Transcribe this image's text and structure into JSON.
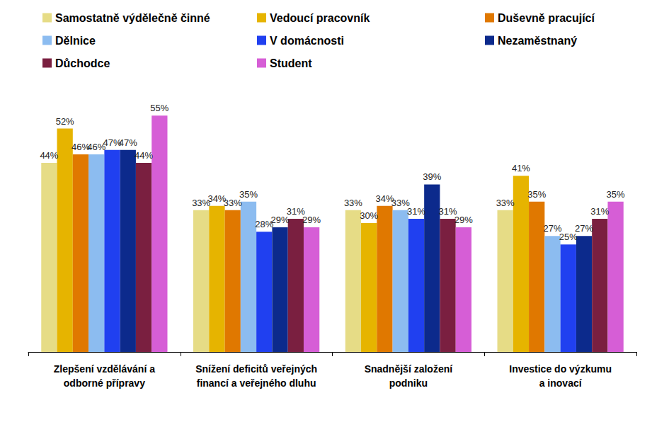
{
  "chart_data": {
    "type": "bar",
    "categories": [
      "Zlepšení vzdělávání a\nodborné přípravy",
      "Snížení deficitů veřejných\nfinancí a veřejného dluhu",
      "Snadnější založení\npodniku",
      "Investice do výzkumu\na inovací"
    ],
    "series": [
      {
        "name": "Samostatně výdělečně činné",
        "color": "#e6dc86",
        "values": [
          44,
          33,
          33,
          33
        ],
        "value_labels": [
          "44%",
          "33%",
          "33%",
          "33%"
        ]
      },
      {
        "name": "Vedoucí pracovník",
        "color": "#e6b400",
        "values": [
          52,
          34,
          30,
          41
        ],
        "value_labels": [
          "52%",
          "34%",
          "30%",
          "41%"
        ]
      },
      {
        "name": "Duševně pracující",
        "color": "#e07800",
        "values": [
          46,
          33,
          34,
          35
        ],
        "value_labels": [
          "46%",
          "33%",
          "34%",
          "35%"
        ]
      },
      {
        "name": "Dělnice",
        "color": "#8cbcf0",
        "values": [
          46,
          35,
          33,
          27
        ],
        "value_labels": [
          "46%",
          "35%",
          "33%",
          "27%"
        ]
      },
      {
        "name": "V domácnosti",
        "color": "#2040f0",
        "values": [
          47,
          28,
          31,
          25
        ],
        "value_labels": [
          "47%",
          "28%",
          "31%",
          "25%"
        ]
      },
      {
        "name": "Nezaměstnaný",
        "color": "#0c2a8c",
        "values": [
          47,
          29,
          39,
          27
        ],
        "value_labels": [
          "47%",
          "29%",
          "39%",
          "27%"
        ]
      },
      {
        "name": "Důchodce",
        "color": "#7a1f40",
        "values": [
          44,
          31,
          31,
          31
        ],
        "value_labels": [
          "44%",
          "31%",
          "31%",
          "31%"
        ]
      },
      {
        "name": "Student",
        "color": "#d65ed6",
        "values": [
          55,
          29,
          29,
          35
        ],
        "value_labels": [
          "55%",
          "29%",
          "29%",
          "35%"
        ]
      }
    ],
    "ylim": [
      0,
      60
    ],
    "yticks": [
      0,
      10,
      20,
      30,
      40,
      50,
      60
    ],
    "grid": false,
    "legend": "top",
    "data_labels": true,
    "tick_labels": "x"
  }
}
